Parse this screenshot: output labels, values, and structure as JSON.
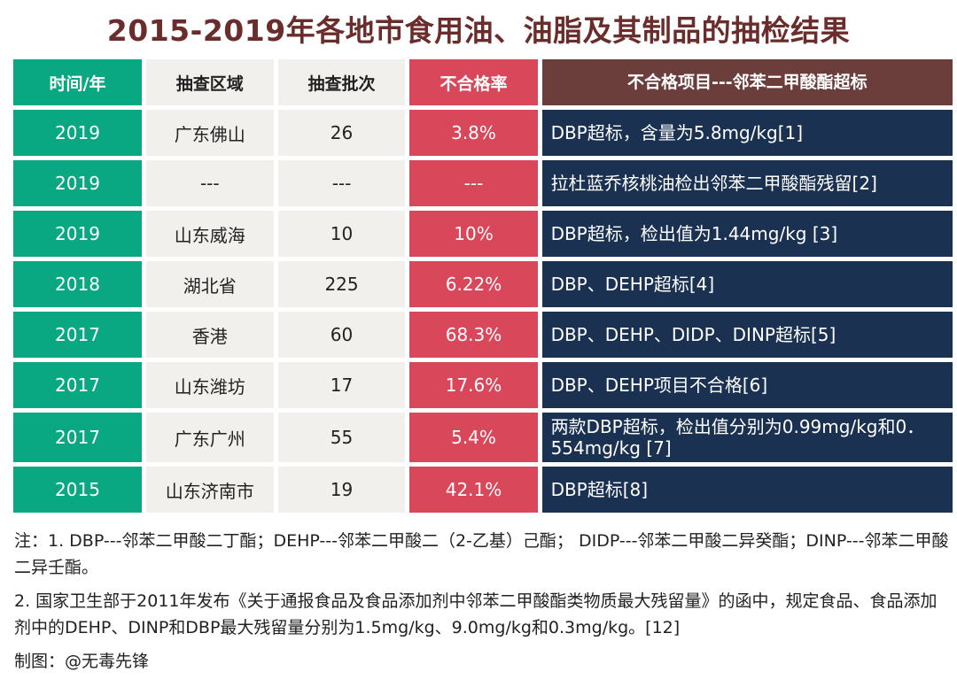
{
  "title": "2015-2019年各地市食用油、油脂及其制品的抽检结果",
  "chart_data": {
    "type": "table",
    "title": "2015-2019年各地市食用油、油脂及其制品的抽检结果",
    "columns": [
      "时间/年",
      "抽查区域",
      "抽查批次",
      "不合格率",
      "不合格项目---邻苯二甲酸酯超标"
    ],
    "rows": [
      [
        "2019",
        "广东佛山",
        "26",
        "3.8%",
        "DBP超标，含量为5.8mg/kg[1]"
      ],
      [
        "2019",
        "---",
        "---",
        "---",
        "拉杜蓝乔核桃油检出邻苯二甲酸酯残留[2]"
      ],
      [
        "2019",
        "山东威海",
        "10",
        "10%",
        "DBP超标，检出值为1.44mg/kg [3]"
      ],
      [
        "2018",
        "湖北省",
        "225",
        "6.22%",
        "DBP、DEHP超标[4]"
      ],
      [
        "2017",
        "香港",
        "60",
        "68.3%",
        "DBP、DEHP、DIDP、DINP超标[5]"
      ],
      [
        "2017",
        "山东潍坊",
        "17",
        "17.6%",
        "DBP、DEHP项目不合格[6]"
      ],
      [
        "2017",
        "广东广州",
        "55",
        "5.4%",
        "两款DBP超标，检出值分别为0.99mg/kg和0．554mg/kg [7]"
      ],
      [
        "2015",
        "山东济南市",
        "19",
        "42.1%",
        "DBP超标[8]"
      ]
    ],
    "colors": {
      "header": "#6b3e3c",
      "year": "#0aa882",
      "region": "#f2f0ec",
      "rate": "#d9485a",
      "item": "#1b3151"
    }
  },
  "notes": [
    "注：1. DBP---邻苯二甲酸二丁酯；DEHP---邻苯二甲酸二（2-乙基）己酯； DIDP---邻苯二甲酸二异癸酯；DINP---邻苯二甲酸二异壬酯。",
    "2. 国家卫生部于2011年发布《关于通报食品及食品添加剂中邻苯二甲酸酯类物质最大残留量》的函中，规定食品、食品添加剂中的DEHP、DINP和DBP最大残留量分别为1.5mg/kg、9.0mg/kg和0.3mg/kg。[12]",
    "制图：@无毒先锋"
  ]
}
